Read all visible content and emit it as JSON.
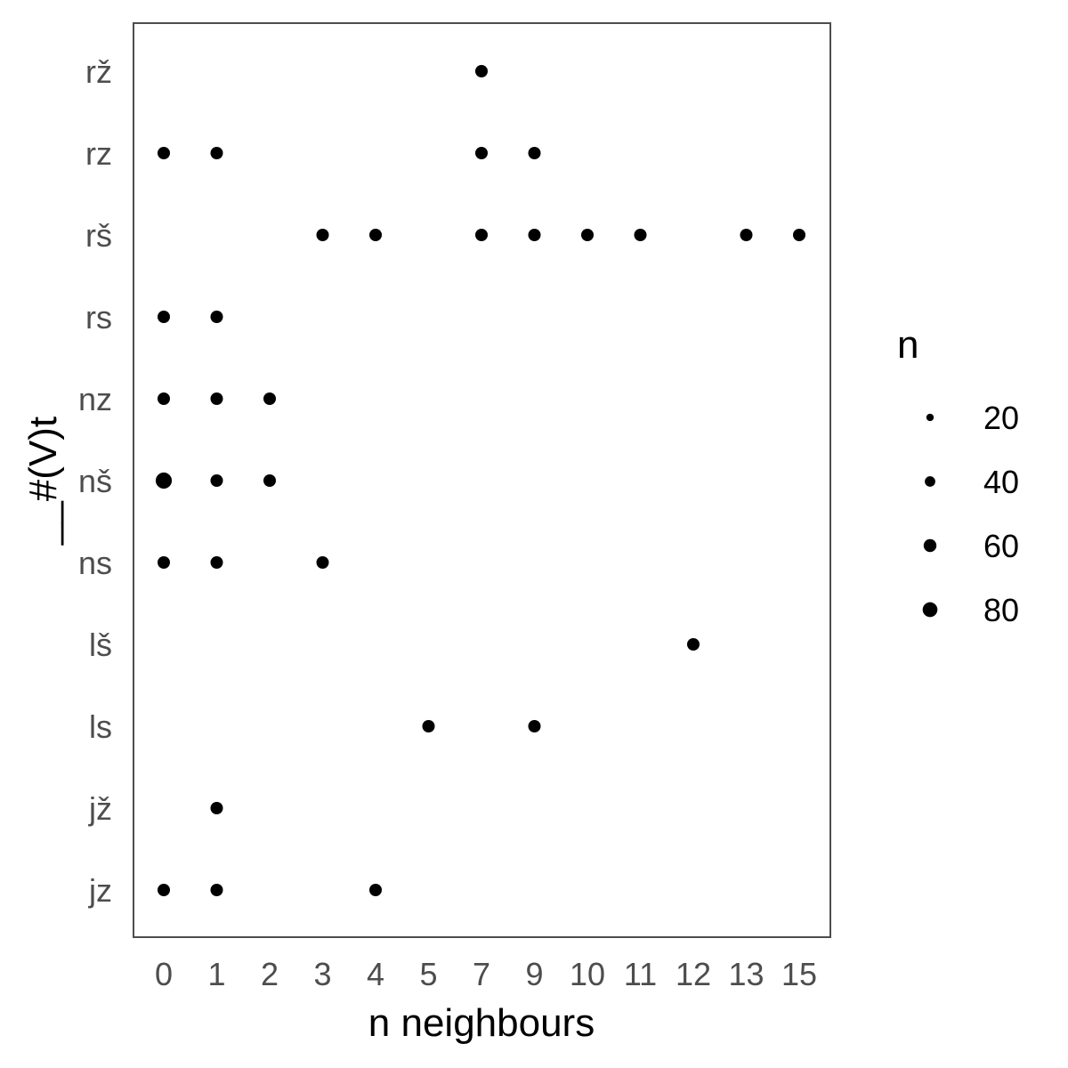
{
  "chart_data": {
    "type": "scatter",
    "title": "",
    "xlabel": "n neighbours",
    "ylabel": "__#(V)t",
    "x_categories": [
      "0",
      "1",
      "2",
      "3",
      "4",
      "5",
      "7",
      "9",
      "10",
      "11",
      "12",
      "13",
      "15"
    ],
    "y_categories": [
      "jz",
      "jž",
      "ls",
      "lš",
      "ns",
      "nš",
      "nz",
      "rs",
      "rš",
      "rz",
      "rž"
    ],
    "points": [
      {
        "x": "7",
        "y": "rž",
        "n": 5
      },
      {
        "x": "0",
        "y": "rz",
        "n": 10
      },
      {
        "x": "1",
        "y": "rz",
        "n": 5
      },
      {
        "x": "7",
        "y": "rz",
        "n": 5
      },
      {
        "x": "9",
        "y": "rz",
        "n": 5
      },
      {
        "x": "3",
        "y": "rš",
        "n": 5
      },
      {
        "x": "4",
        "y": "rš",
        "n": 5
      },
      {
        "x": "7",
        "y": "rš",
        "n": 5
      },
      {
        "x": "9",
        "y": "rš",
        "n": 5
      },
      {
        "x": "10",
        "y": "rš",
        "n": 5
      },
      {
        "x": "11",
        "y": "rš",
        "n": 10
      },
      {
        "x": "13",
        "y": "rš",
        "n": 5
      },
      {
        "x": "15",
        "y": "rš",
        "n": 5
      },
      {
        "x": "0",
        "y": "rs",
        "n": 5
      },
      {
        "x": "1",
        "y": "rs",
        "n": 5
      },
      {
        "x": "0",
        "y": "nz",
        "n": 5
      },
      {
        "x": "1",
        "y": "nz",
        "n": 5
      },
      {
        "x": "2",
        "y": "nz",
        "n": 5
      },
      {
        "x": "0",
        "y": "nš",
        "n": 95
      },
      {
        "x": "1",
        "y": "nš",
        "n": 40
      },
      {
        "x": "2",
        "y": "nš",
        "n": 14
      },
      {
        "x": "0",
        "y": "ns",
        "n": 16
      },
      {
        "x": "1",
        "y": "ns",
        "n": 17
      },
      {
        "x": "3",
        "y": "ns",
        "n": 5
      },
      {
        "x": "12",
        "y": "lš",
        "n": 5
      },
      {
        "x": "5",
        "y": "ls",
        "n": 5
      },
      {
        "x": "9",
        "y": "ls",
        "n": 5
      },
      {
        "x": "1",
        "y": "jž",
        "n": 5
      },
      {
        "x": "0",
        "y": "jz",
        "n": 5
      },
      {
        "x": "1",
        "y": "jz",
        "n": 11
      },
      {
        "x": "4",
        "y": "jz",
        "n": 5
      }
    ],
    "legend": {
      "title": "n",
      "placement": "right",
      "entries": [
        {
          "label": "20",
          "n": 20
        },
        {
          "label": "40",
          "n": 40
        },
        {
          "label": "60",
          "n": 60
        },
        {
          "label": "80",
          "n": 80
        }
      ]
    },
    "grid": false,
    "point_color": "#000000",
    "panel_border_color": "#4d4d4d"
  }
}
